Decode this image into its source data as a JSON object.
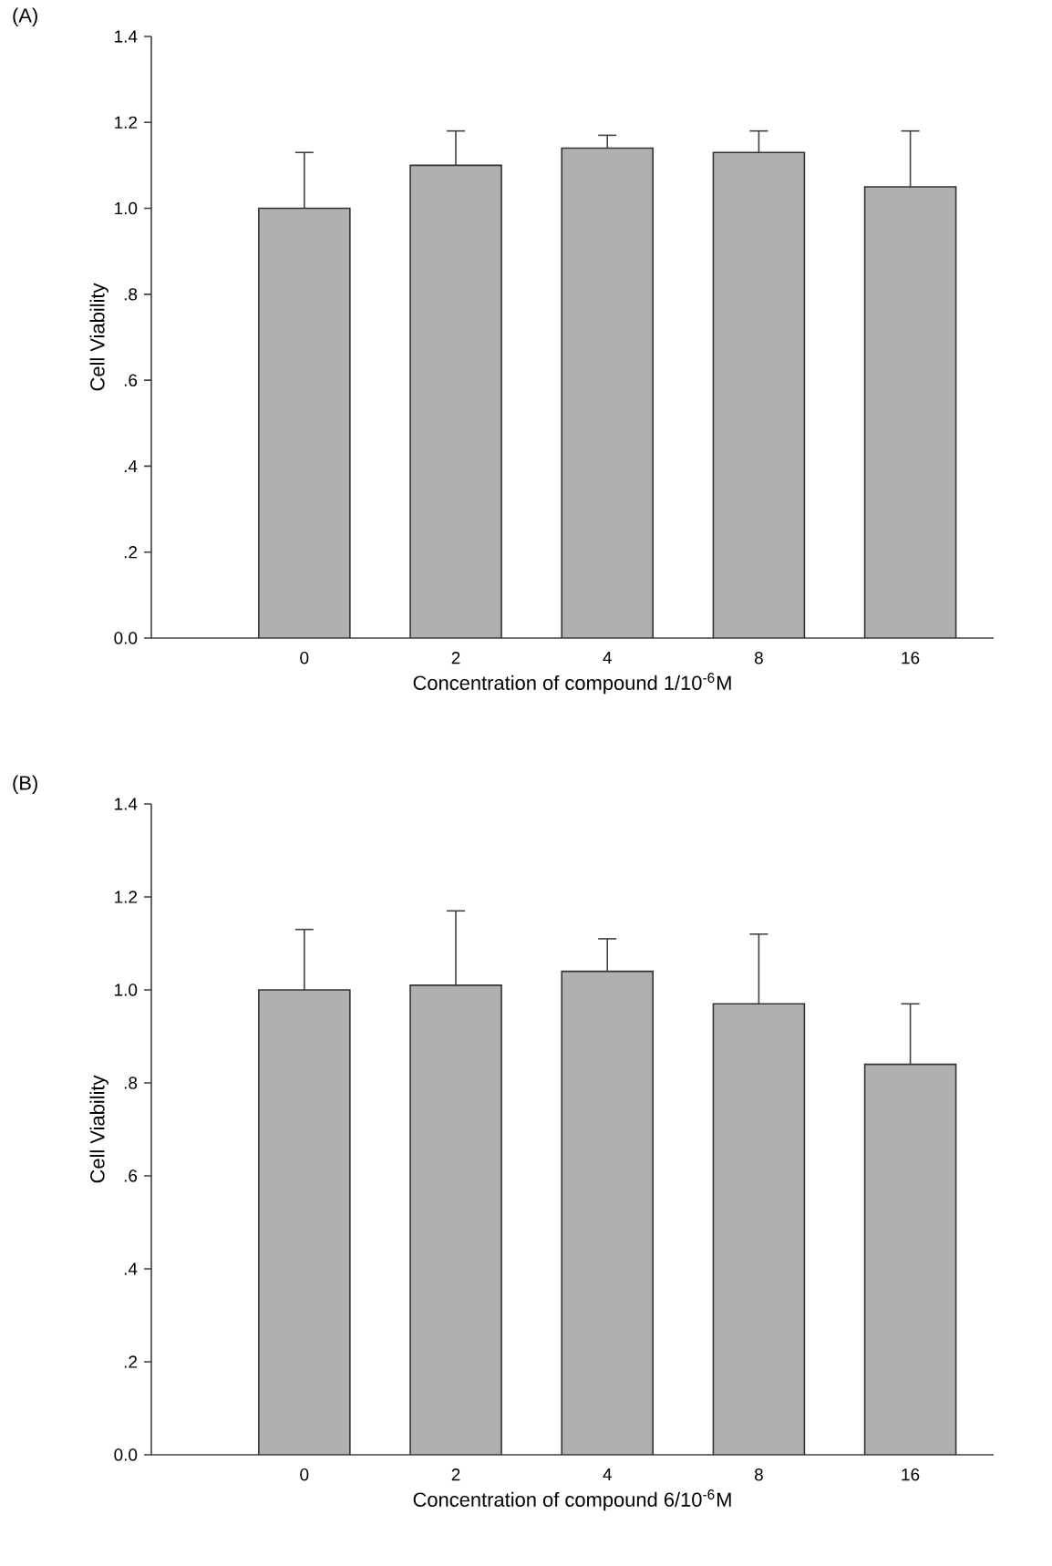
{
  "chart_data": [
    {
      "type": "bar",
      "title": "(A)",
      "xlabel": "Concentration of compound 1/10$^{-6}$M",
      "ylabel": "Cell Viability",
      "categories": [
        "0",
        "2",
        "4",
        "8",
        "16"
      ],
      "values": [
        1.0,
        1.1,
        1.14,
        1.13,
        1.05
      ],
      "errors": [
        [
          1.0,
          1.13
        ],
        [
          1.1,
          1.18
        ],
        [
          1.14,
          1.17
        ],
        [
          1.13,
          1.18
        ],
        [
          1.05,
          1.18
        ]
      ],
      "color": "#b0b0b0",
      "ylim": [
        0,
        1.4
      ],
      "yticks": [
        {
          "value": 0,
          "label": "0.0"
        },
        {
          "value": 0.2,
          "label": ".2"
        },
        {
          "value": 0.4,
          "label": ".4"
        },
        {
          "value": 0.6,
          "label": ".6"
        },
        {
          "value": 0.8,
          "label": ".8"
        },
        {
          "value": 1.0,
          "label": "1.0"
        },
        {
          "value": 1.2,
          "label": "1.2"
        },
        {
          "value": 1.4,
          "label": "1.4"
        }
      ]
    },
    {
      "type": "bar",
      "title": "(B)",
      "xlabel": "Concentration of compound 6/10$^{-6}$M",
      "ylabel": "Cell Viability",
      "categories": [
        "0",
        "2",
        "4",
        "8",
        "16"
      ],
      "values": [
        1.0,
        1.01,
        1.04,
        0.97,
        0.84
      ],
      "errors": [
        [
          1.0,
          1.13
        ],
        [
          1.01,
          1.17
        ],
        [
          1.04,
          1.11
        ],
        [
          0.97,
          1.12
        ],
        [
          0.84,
          0.97
        ]
      ],
      "color": "#b0b0b0",
      "ylim": [
        0,
        1.4
      ],
      "yticks": [
        {
          "value": 0,
          "label": "0.0"
        },
        {
          "value": 0.2,
          "label": ".2"
        },
        {
          "value": 0.4,
          "label": ".4"
        },
        {
          "value": 0.6,
          "label": ".6"
        },
        {
          "value": 0.8,
          "label": ".8"
        },
        {
          "value": 1.0,
          "label": "1.0"
        },
        {
          "value": 1.2,
          "label": "1.2"
        },
        {
          "value": 1.4,
          "label": "1.4"
        }
      ]
    }
  ]
}
